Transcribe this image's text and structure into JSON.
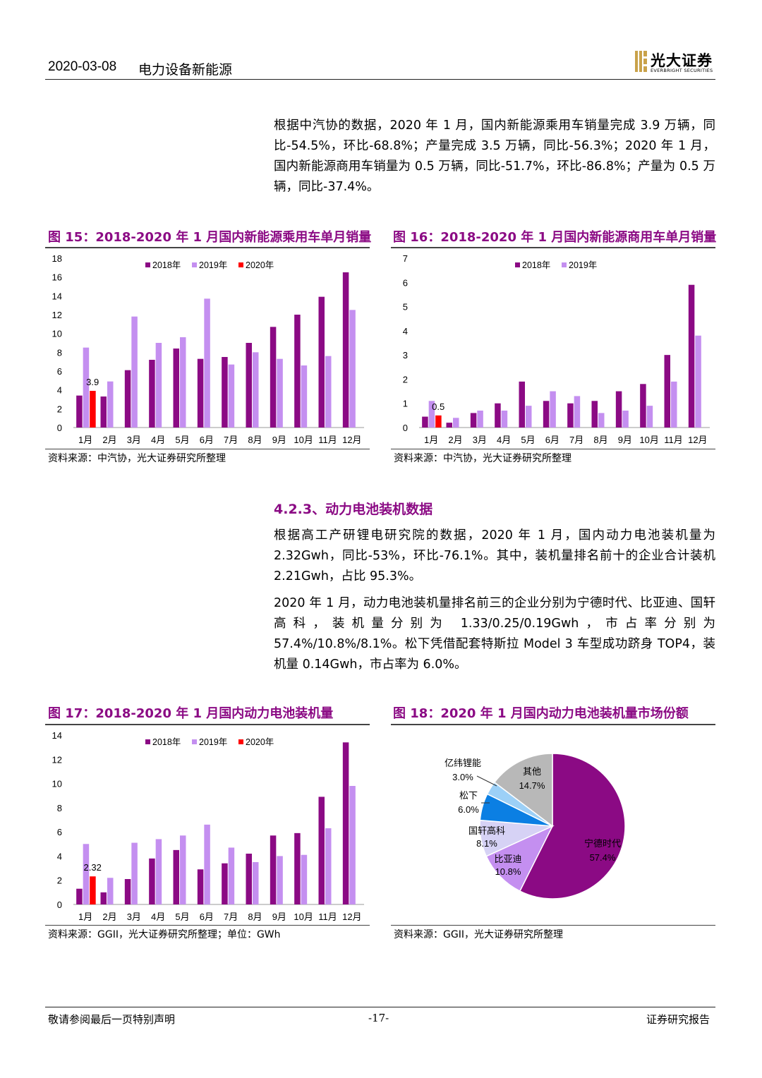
{
  "header": {
    "date": "2020-03-08",
    "sector": "电力设备新能源",
    "logo_text": "光大证券",
    "logo_sub": "EVERBRIGHT SECURITIES"
  },
  "paragraphs": {
    "p1": "根据中汽协的数据，2020 年 1 月，国内新能源乘用车销量完成 3.9 万辆，同比-54.5%，环比-68.8%；产量完成 3.5 万辆，同比-56.3%；2020 年 1 月，国内新能源商用车销量为 0.5 万辆，同比-51.7%，环比-86.8%；产量为 0.5 万辆，同比-37.4%。",
    "p2": "根据高工产研锂电研究院的数据，2020 年 1 月，国内动力电池装机量为 2.32Gwh，同比-53%，环比-76.1%。其中，装机量排名前十的企业合计装机 2.21Gwh，占比 95.3%。",
    "p3": "2020 年 1 月，动力电池装机量排名前三的企业分别为宁德时代、比亚迪、国轩高科，装机量分别为 1.33/0.25/0.19Gwh，市占率分别为 57.4%/10.8%/8.1%。松下凭借配套特斯拉 Model 3 车型成功跻身 TOP4，装机量 0.14Gwh，市占率为 6.0%。"
  },
  "section_heading": "4.2.3、动力电池装机数据",
  "figures": {
    "f15": {
      "title": "图 15：2018-2020 年 1 月国内新能源乘用车单月销量",
      "source": "资料来源：中汽协，光大证券研究所整理"
    },
    "f16": {
      "title": "图 16：2018-2020 年 1 月国内新能源商用车单月销量",
      "source": "资料来源：中汽协，光大证券研究所整理"
    },
    "f17": {
      "title": "图 17：2018-2020 年 1 月国内动力电池装机量",
      "source": "资料来源：GGII，光大证券研究所整理；单位：GWh"
    },
    "f18": {
      "title": "图 18：2020 年 1 月国内动力电池装机量市场份额",
      "source": "资料来源：GGII，光大证券研究所整理"
    }
  },
  "footer": {
    "left": "敬请参阅最后一页特别声明",
    "center": "-17-",
    "right": "证券研究报告"
  },
  "colors": {
    "s2018": "#8b0a84",
    "s2019": "#c48ff0",
    "s2020": "#ff0000",
    "accent": "#8b0a84"
  },
  "chart_data": [
    {
      "type": "bar",
      "categories": [
        "1月",
        "2月",
        "3月",
        "4月",
        "5月",
        "6月",
        "7月",
        "8月",
        "9月",
        "10月",
        "11月",
        "12月"
      ],
      "ylim": [
        0,
        18
      ],
      "yticks": [
        0,
        2,
        4,
        6,
        8,
        10,
        12,
        14,
        16,
        18
      ],
      "series": [
        {
          "name": "2018年",
          "values": [
            3.4,
            3.3,
            6.1,
            7.2,
            8.4,
            7.3,
            7.5,
            9.0,
            10.7,
            12.0,
            13.9,
            16.5
          ]
        },
        {
          "name": "2019年",
          "values": [
            8.5,
            4.9,
            11.8,
            9.0,
            9.6,
            13.7,
            6.7,
            8.0,
            7.3,
            6.6,
            7.6,
            12.5
          ]
        },
        {
          "name": "2020年",
          "values": [
            3.9,
            null,
            null,
            null,
            null,
            null,
            null,
            null,
            null,
            null,
            null,
            null
          ]
        }
      ],
      "annotations": [
        {
          "category": "1月",
          "series": "2020年",
          "label": "3.9"
        }
      ]
    },
    {
      "type": "bar",
      "categories": [
        "1月",
        "2月",
        "3月",
        "4月",
        "5月",
        "6月",
        "7月",
        "8月",
        "9月",
        "10月",
        "11月",
        "12月"
      ],
      "ylim": [
        0,
        7
      ],
      "yticks": [
        0,
        1,
        2,
        3,
        4,
        5,
        6,
        7
      ],
      "series": [
        {
          "name": "2018年",
          "values": [
            0.45,
            0.2,
            0.6,
            1.0,
            1.9,
            1.1,
            1.0,
            1.1,
            1.5,
            1.8,
            3.0,
            5.9
          ]
        },
        {
          "name": "2019年",
          "values": [
            1.1,
            0.4,
            0.7,
            0.7,
            0.9,
            1.5,
            1.3,
            0.6,
            0.7,
            0.9,
            1.9,
            3.8
          ]
        },
        {
          "name": "2020年",
          "values": [
            0.5,
            null,
            null,
            null,
            null,
            null,
            null,
            null,
            null,
            null,
            null,
            null
          ]
        }
      ],
      "legend": [
        "2018年",
        "2019年"
      ],
      "annotations": [
        {
          "category": "1月",
          "series": "2020年",
          "label": "0.5"
        }
      ]
    },
    {
      "type": "bar",
      "categories": [
        "1月",
        "2月",
        "3月",
        "4月",
        "5月",
        "6月",
        "7月",
        "8月",
        "9月",
        "10月",
        "11月",
        "12月"
      ],
      "ylim": [
        0,
        14
      ],
      "yticks": [
        0,
        2,
        4,
        6,
        8,
        10,
        12,
        14
      ],
      "series": [
        {
          "name": "2018年",
          "values": [
            1.3,
            1.0,
            2.1,
            3.8,
            4.5,
            2.9,
            3.4,
            4.2,
            5.7,
            5.9,
            8.9,
            13.4
          ]
        },
        {
          "name": "2019年",
          "values": [
            5.0,
            2.2,
            5.1,
            5.4,
            5.7,
            6.6,
            4.7,
            3.5,
            4.0,
            4.1,
            6.3,
            9.8
          ]
        },
        {
          "name": "2020年",
          "values": [
            2.32,
            null,
            null,
            null,
            null,
            null,
            null,
            null,
            null,
            null,
            null,
            null
          ]
        }
      ],
      "annotations": [
        {
          "category": "1月",
          "series": "2020年",
          "label": "2.32"
        }
      ]
    },
    {
      "type": "pie",
      "slices": [
        {
          "name": "宁德时代",
          "value": 57.4,
          "label": "57.4%",
          "color": "#8b0a84"
        },
        {
          "name": "比亚迪",
          "value": 10.8,
          "label": "10.8%",
          "color": "#c48ff0"
        },
        {
          "name": "国轩高科",
          "value": 8.1,
          "label": "8.1%",
          "color": "#d6d2f5"
        },
        {
          "name": "松下",
          "value": 6.0,
          "label": "6.0%",
          "color": "#0b7fe3"
        },
        {
          "name": "亿纬锂能",
          "value": 3.0,
          "label": "3.0%",
          "color": "#9cd0f7"
        },
        {
          "name": "其他",
          "value": 14.7,
          "label": "14.7%",
          "color": "#b8b8b8"
        }
      ]
    }
  ]
}
